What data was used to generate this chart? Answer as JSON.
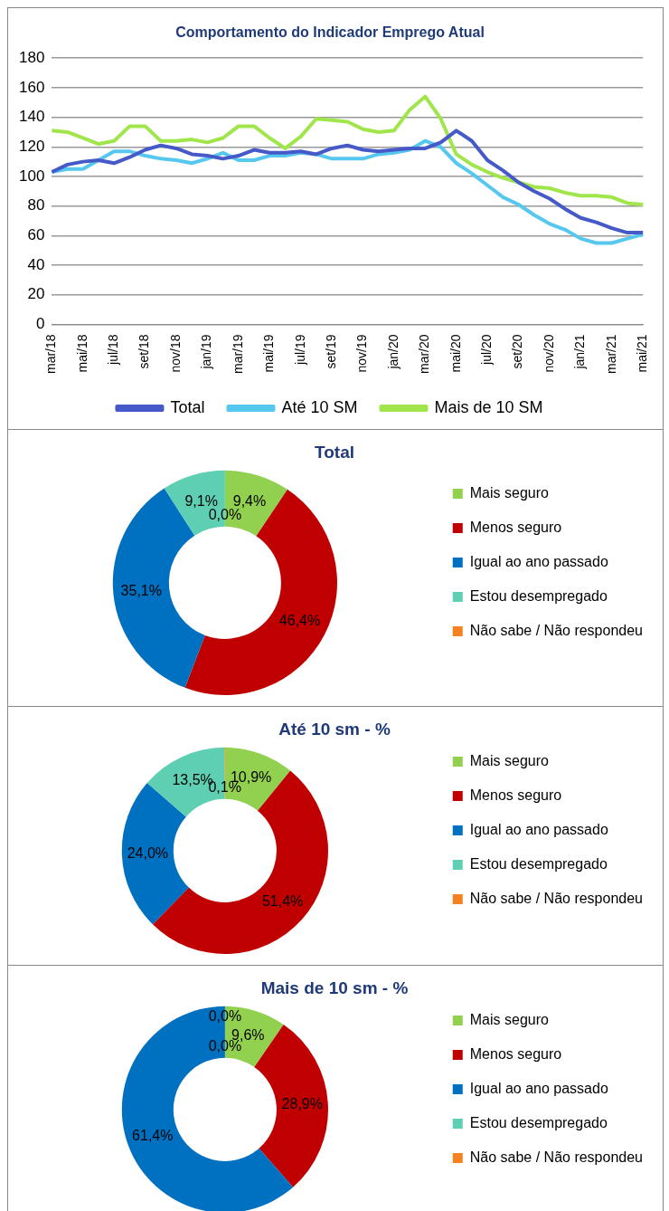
{
  "chart_data": [
    {
      "type": "line",
      "title": "Comportamento do Indicador Emprego Atual",
      "categories": [
        "mar/18",
        null,
        "mai/18",
        null,
        "jul/18",
        null,
        "set/18",
        null,
        "nov/18",
        null,
        "jan/19",
        null,
        "mar/19",
        null,
        "mai/19",
        null,
        "jul/19",
        null,
        "set/19",
        null,
        "nov/19",
        null,
        "jan/20",
        null,
        "mar/20",
        null,
        "mai/20",
        null,
        "jul/20",
        null,
        "set/20",
        null,
        "nov/20",
        null,
        "jan/21",
        null,
        "mar/21",
        null,
        "mai/21"
      ],
      "series": [
        {
          "name": "Total",
          "color": "#4559c8",
          "values": [
            103,
            108,
            110,
            111,
            109,
            113,
            118,
            121,
            119,
            115,
            114,
            112,
            114,
            118,
            116,
            116,
            117,
            115,
            119,
            121,
            118,
            117,
            118,
            119,
            119,
            123,
            131,
            124,
            111,
            104,
            96,
            90,
            85,
            78,
            72,
            69,
            65,
            62,
            62
          ]
        },
        {
          "name": "Até 10 SM",
          "color": "#56c8f0",
          "values": [
            103,
            105,
            105,
            111,
            117,
            117,
            114,
            112,
            111,
            109,
            112,
            116,
            111,
            111,
            114,
            114,
            116,
            115,
            112,
            112,
            112,
            115,
            116,
            118,
            124,
            120,
            109,
            102,
            94,
            86,
            81,
            74,
            68,
            64,
            58,
            55,
            55,
            58,
            61
          ]
        },
        {
          "name": "Mais de 10 SM",
          "color": "#a0e54a",
          "values": [
            131,
            130,
            126,
            122,
            124,
            134,
            134,
            124,
            124,
            125,
            123,
            126,
            134,
            134,
            126,
            119,
            127,
            139,
            138,
            137,
            132,
            130,
            131,
            145,
            154,
            139,
            115,
            108,
            103,
            99,
            96,
            93,
            92,
            89,
            87,
            87,
            86,
            82,
            81
          ]
        }
      ],
      "ylim": [
        0,
        180
      ],
      "yticks": [
        0,
        20,
        40,
        60,
        80,
        100,
        120,
        140,
        160,
        180
      ],
      "grid": "y",
      "legend": "bottom",
      "marker": "none"
    },
    {
      "type": "donut",
      "title": "Total",
      "categories": [
        "Mais seguro",
        "Menos seguro",
        "Igual ao ano passado",
        "Estou desempregado",
        "Não sabe / Não respondeu"
      ],
      "values": [
        9.4,
        46.4,
        35.1,
        9.1,
        0.0
      ],
      "colors": [
        "#92d050",
        "#c00000",
        "#0070c0",
        "#5ecfb2",
        "#f58220"
      ],
      "value_labels": [
        "9,4%",
        "46,4%",
        "35,1%",
        "9,1%",
        "0,0%"
      ],
      "legend": "right"
    },
    {
      "type": "donut",
      "title": "Até 10 sm - %",
      "categories": [
        "Mais seguro",
        "Menos seguro",
        "Igual ao ano passado",
        "Estou desempregado",
        "Não sabe / Não respondeu"
      ],
      "values": [
        10.9,
        51.4,
        24.0,
        13.5,
        0.1
      ],
      "colors": [
        "#92d050",
        "#c00000",
        "#0070c0",
        "#5ecfb2",
        "#f58220"
      ],
      "value_labels": [
        "10,9%",
        "51,4%",
        "24,0%",
        "13,5%",
        "0,1%"
      ],
      "legend": "right"
    },
    {
      "type": "donut",
      "title": "Mais de 10 sm - %",
      "categories": [
        "Mais seguro",
        "Menos seguro",
        "Igual ao ano passado",
        "Estou desempregado",
        "Não sabe / Não respondeu"
      ],
      "values": [
        9.6,
        28.9,
        61.4,
        0.0,
        0.0
      ],
      "colors": [
        "#92d050",
        "#c00000",
        "#0070c0",
        "#5ecfb2",
        "#f58220"
      ],
      "value_labels": [
        "9,6%",
        "28,9%",
        "61,4%",
        "0,0%",
        "0,0%"
      ],
      "legend": "right"
    }
  ]
}
